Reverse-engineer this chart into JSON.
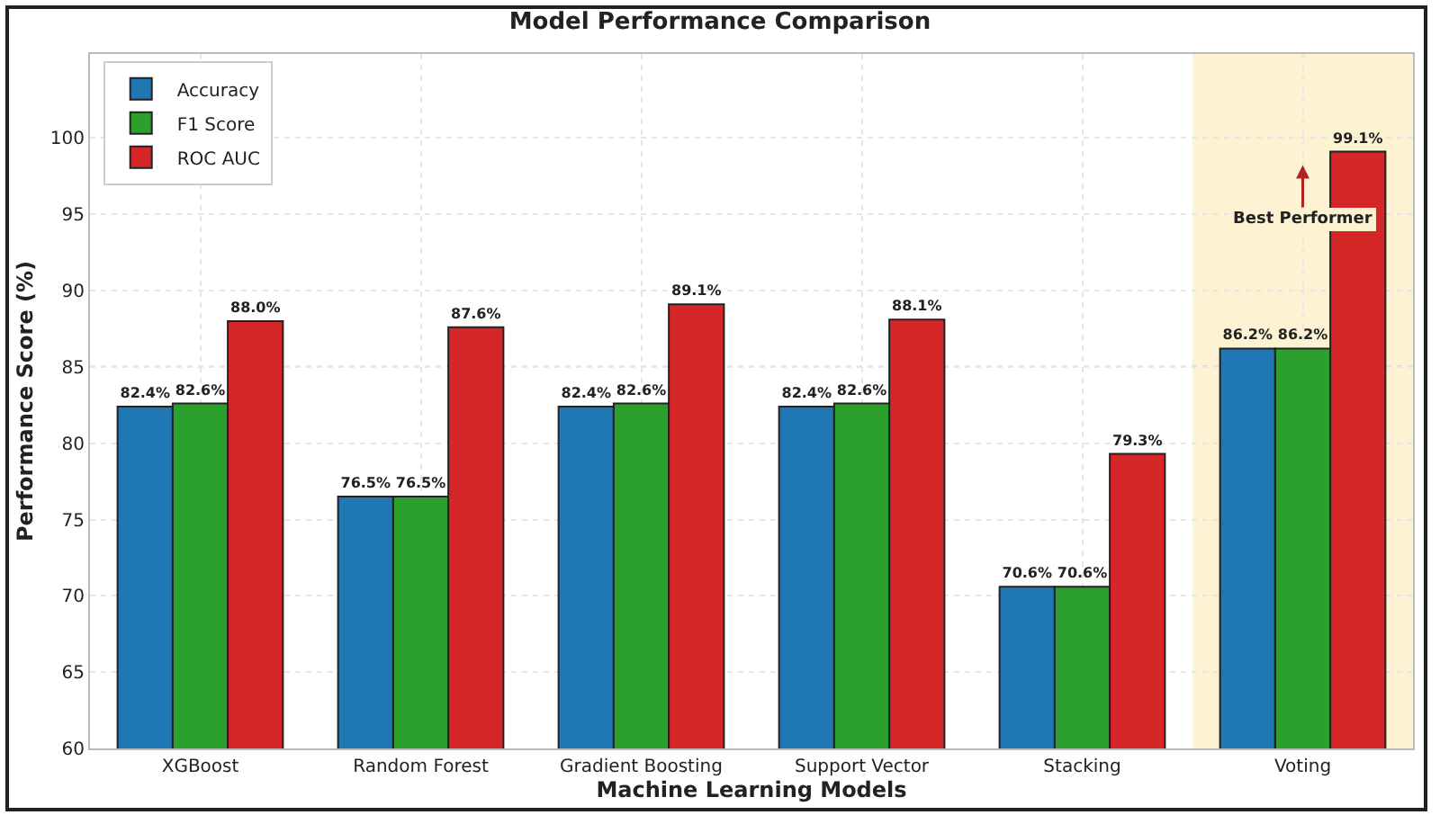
{
  "chart_data": {
    "type": "bar",
    "title": "Model Performance Comparison",
    "xlabel": "Machine Learning Models",
    "ylabel": "Performance Score (%)",
    "categories": [
      "XGBoost",
      "Random Forest",
      "Gradient Boosting",
      "Support Vector",
      "Stacking",
      "Voting"
    ],
    "series": [
      {
        "name": "Accuracy",
        "color": "#1f77b4",
        "values": [
          82.4,
          76.5,
          82.4,
          82.4,
          70.6,
          86.2
        ],
        "value_labels": [
          "82.4%",
          "76.5%",
          "82.4%",
          "82.4%",
          "70.6%",
          "86.2%"
        ]
      },
      {
        "name": "F1 Score",
        "color": "#2ca02c",
        "values": [
          82.6,
          76.5,
          82.6,
          82.6,
          70.6,
          86.2
        ],
        "value_labels": [
          "82.6%",
          "76.5%",
          "82.6%",
          "82.6%",
          "70.6%",
          "86.2%"
        ]
      },
      {
        "name": "ROC AUC",
        "color": "#d62728",
        "values": [
          88.0,
          87.6,
          89.1,
          88.1,
          79.3,
          99.1
        ],
        "value_labels": [
          "88.0%",
          "87.6%",
          "89.1%",
          "88.1%",
          "79.3%",
          "99.1%"
        ]
      }
    ],
    "ylim": [
      60,
      105.5
    ],
    "yticks": [
      60,
      65,
      70,
      75,
      80,
      85,
      90,
      95,
      100
    ],
    "ref_lines": [
      {
        "axis": "y",
        "value": 85,
        "color": "#999999",
        "line_style": "dotted"
      }
    ],
    "bands": [
      {
        "axis": "x",
        "from": "Voting",
        "to": "Voting",
        "color": "#fdf3d3"
      }
    ],
    "annotations": [
      "Best Performer"
    ],
    "grid": true,
    "legend": "top left"
  }
}
